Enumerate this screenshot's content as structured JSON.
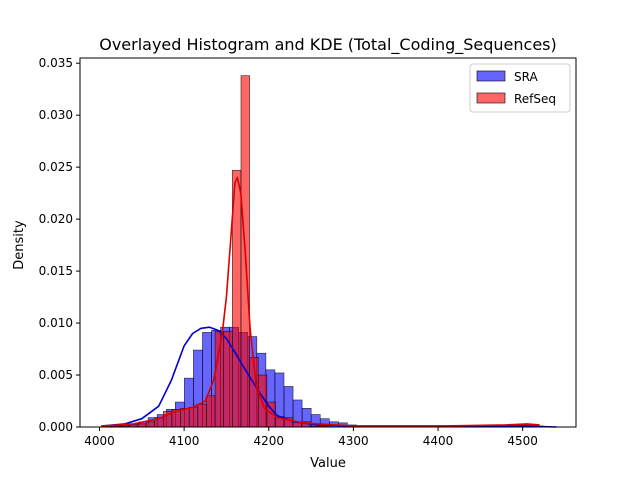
{
  "chart_data": {
    "type": "histogram",
    "title": "Overlayed Histogram and KDE (Total_Coding_Sequences)",
    "xlabel": "Value",
    "ylabel": "Density",
    "xlim": [
      3977,
      4563
    ],
    "ylim": [
      0,
      0.0355
    ],
    "xticks": [
      4000,
      4100,
      4200,
      4300,
      4400,
      4500
    ],
    "yticks": [
      0.0,
      0.005,
      0.01,
      0.015,
      0.02,
      0.025,
      0.03,
      0.035
    ],
    "ytick_labels": [
      "0.000",
      "0.005",
      "0.010",
      "0.015",
      "0.020",
      "0.025",
      "0.030",
      "0.035"
    ],
    "legend_position": "top-right",
    "grid": false,
    "series": [
      {
        "name": "SRA",
        "fill": "#0000ff",
        "line": "#0000cc",
        "bin_start": 4004,
        "bin_width": 10.7,
        "densities": [
          0.0001,
          0.0001,
          0.0002,
          0.0003,
          0.0005,
          0.0009,
          0.0012,
          0.0017,
          0.0024,
          0.0047,
          0.0074,
          0.0091,
          0.0093,
          0.0096,
          0.0096,
          0.0091,
          0.0087,
          0.0071,
          0.0055,
          0.0052,
          0.0039,
          0.0026,
          0.0018,
          0.0012,
          0.0008,
          0.0005,
          0.0004,
          0.0002,
          0.0001,
          0.0001,
          0.0001,
          0.0001,
          0.0,
          0.0,
          0.0,
          0.0,
          0.0,
          0.0,
          0.0,
          0.0,
          0.0,
          0.0,
          0.0,
          0.0,
          0.0,
          0.0,
          0.0,
          0.0,
          0.0,
          0.0
        ],
        "kde": [
          [
            4002,
            0.0001
          ],
          [
            4030,
            0.0003
          ],
          [
            4050,
            0.0008
          ],
          [
            4070,
            0.002
          ],
          [
            4085,
            0.0045
          ],
          [
            4100,
            0.0078
          ],
          [
            4110,
            0.009
          ],
          [
            4120,
            0.0095
          ],
          [
            4130,
            0.0096
          ],
          [
            4140,
            0.0093
          ],
          [
            4150,
            0.0085
          ],
          [
            4160,
            0.0072
          ],
          [
            4170,
            0.0058
          ],
          [
            4180,
            0.0045
          ],
          [
            4190,
            0.0032
          ],
          [
            4200,
            0.002
          ],
          [
            4210,
            0.0011
          ],
          [
            4230,
            0.0005
          ],
          [
            4260,
            0.0002
          ],
          [
            4300,
            0.0001
          ],
          [
            4400,
            0.0001
          ],
          [
            4500,
            0.0001
          ],
          [
            4540,
            0.0
          ]
        ]
      },
      {
        "name": "RefSeq",
        "fill": "#ff0000",
        "line": "#dd0000",
        "bin_start": 4004,
        "bin_width": 10.2,
        "densities": [
          0.0001,
          0.0001,
          0.0001,
          0.0002,
          0.0003,
          0.0005,
          0.0009,
          0.0015,
          0.0017,
          0.0018,
          0.0019,
          0.0022,
          0.003,
          0.0092,
          0.0092,
          0.0247,
          0.0338,
          0.0067,
          0.005,
          0.0024,
          0.001,
          0.0009,
          0.0005,
          0.0005,
          0.0001,
          0.0001,
          0.0,
          0.0,
          0.0,
          0.0,
          0.0,
          0.0,
          0.0,
          0.0,
          0.0,
          0.0,
          0.0,
          0.0,
          0.0,
          0.0,
          0.0,
          0.0,
          0.0,
          0.0,
          0.0,
          0.0,
          0.0,
          0.0,
          0.0002,
          0.0002,
          0.0001
        ],
        "kde": [
          [
            4002,
            0.0001
          ],
          [
            4040,
            0.0003
          ],
          [
            4070,
            0.0008
          ],
          [
            4090,
            0.0015
          ],
          [
            4110,
            0.0019
          ],
          [
            4125,
            0.0025
          ],
          [
            4135,
            0.0045
          ],
          [
            4145,
            0.009
          ],
          [
            4150,
            0.0125
          ],
          [
            4155,
            0.018
          ],
          [
            4160,
            0.0235
          ],
          [
            4163,
            0.024
          ],
          [
            4167,
            0.0225
          ],
          [
            4172,
            0.017
          ],
          [
            4178,
            0.0095
          ],
          [
            4185,
            0.004
          ],
          [
            4195,
            0.0018
          ],
          [
            4210,
            0.0009
          ],
          [
            4240,
            0.0004
          ],
          [
            4300,
            0.0001
          ],
          [
            4400,
            0.0001
          ],
          [
            4480,
            0.0002
          ],
          [
            4505,
            0.0003
          ],
          [
            4520,
            0.0002
          ]
        ]
      }
    ]
  }
}
